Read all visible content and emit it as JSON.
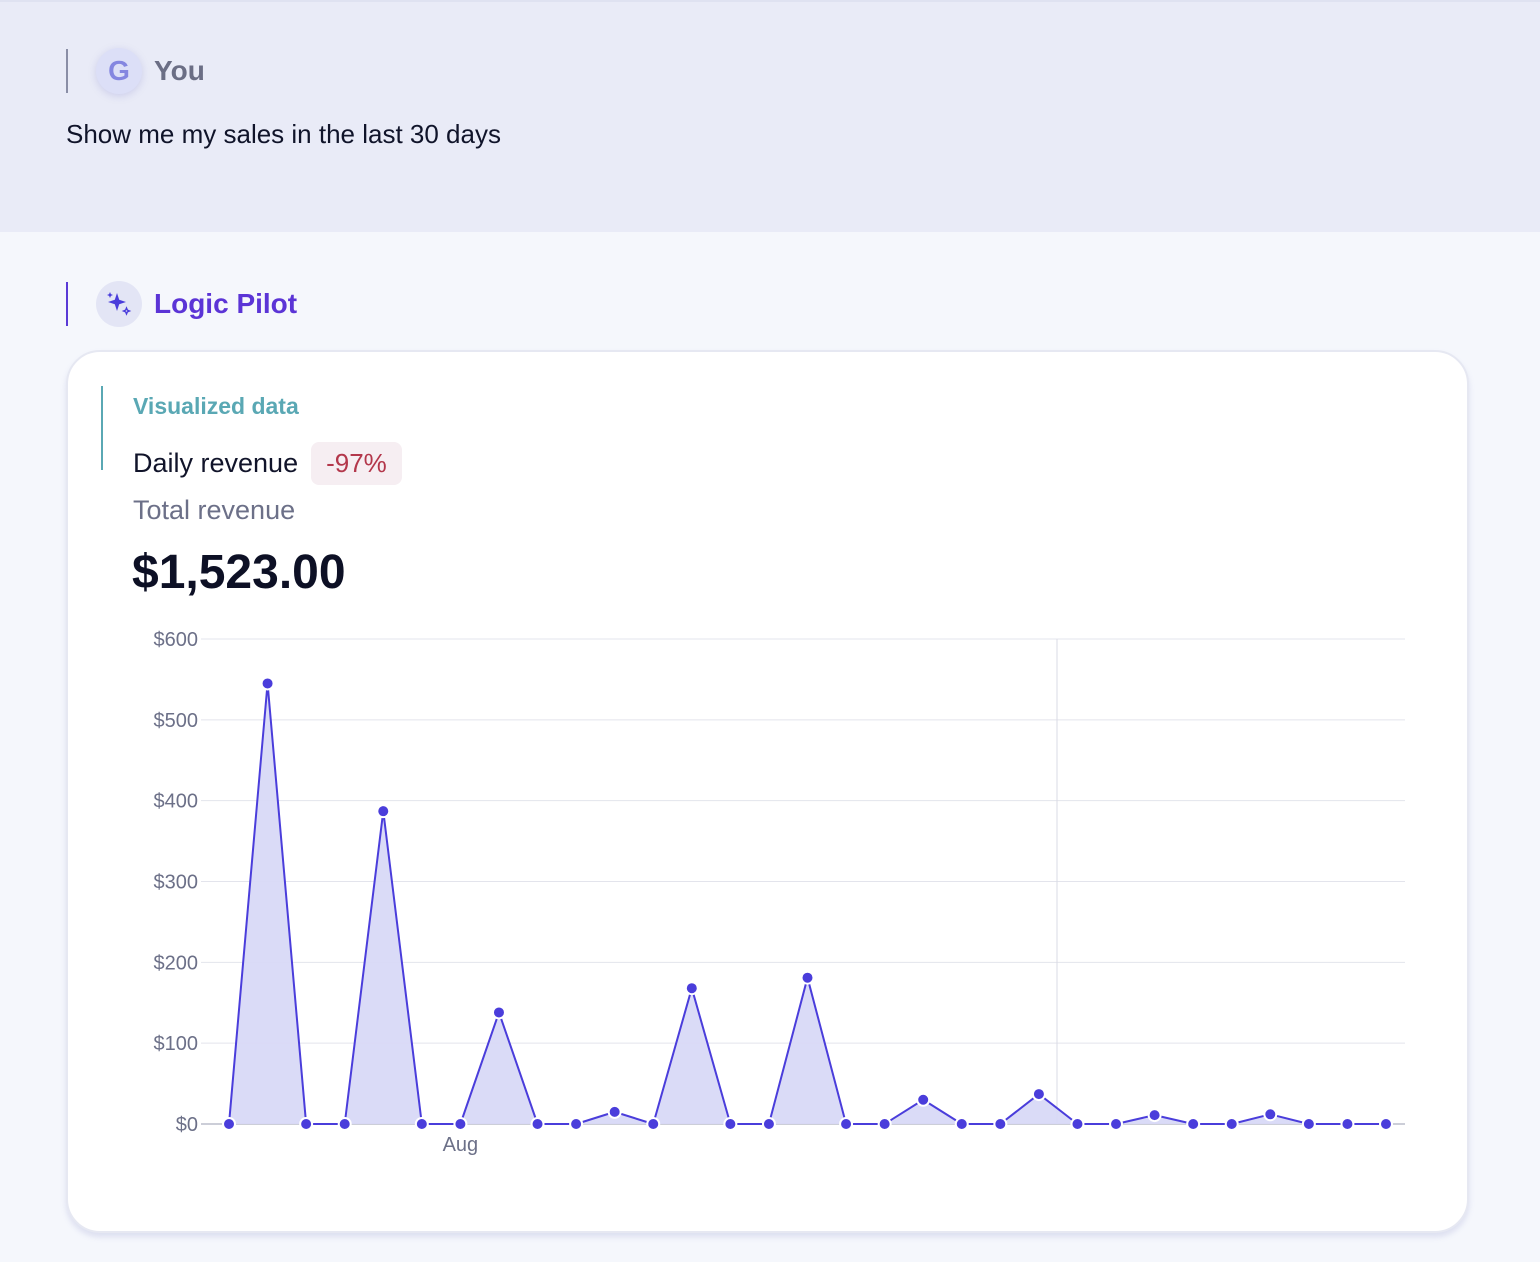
{
  "user_message": {
    "avatar_initial": "G",
    "sender": "You",
    "text": "Show me my sales in the last 30 days"
  },
  "assistant_message": {
    "avatar_icon": "sparkle-icon",
    "sender": "Logic Pilot"
  },
  "card": {
    "kicker": "Visualized data",
    "title": "Daily revenue",
    "change_badge": "-97%",
    "total_label": "Total revenue",
    "total_value": "$1,523.00"
  },
  "colors": {
    "accent": "#4a3ddb",
    "area_fill": "#d8d9f7",
    "badge_text": "#b3374b",
    "kicker": "#5aa8b4"
  },
  "chart_data": {
    "type": "area",
    "title": "",
    "xlabel": "",
    "ylabel": "",
    "ylim": [
      0,
      600
    ],
    "y_ticks": [
      "$0",
      "$100",
      "$200",
      "$300",
      "$400",
      "$500",
      "$600"
    ],
    "x_tick_labels": [
      {
        "index": 6,
        "label": "Aug"
      }
    ],
    "grid": true,
    "series": [
      {
        "values": [
          0,
          545,
          0,
          0,
          387,
          0,
          0,
          138,
          0,
          0,
          15,
          0,
          168,
          0,
          0,
          181,
          0,
          0,
          30,
          0,
          0,
          37,
          0,
          0,
          11,
          0,
          0,
          12,
          0,
          0,
          0
        ]
      }
    ]
  }
}
